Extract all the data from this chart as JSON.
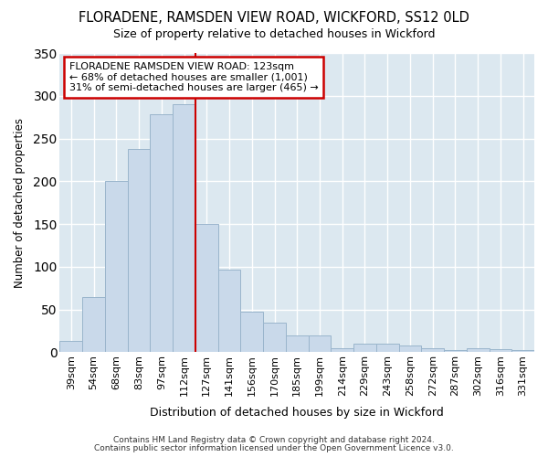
{
  "title": "FLORADENE, RAMSDEN VIEW ROAD, WICKFORD, SS12 0LD",
  "subtitle": "Size of property relative to detached houses in Wickford",
  "xlabel": "Distribution of detached houses by size in Wickford",
  "ylabel": "Number of detached properties",
  "categories": [
    "39sqm",
    "54sqm",
    "68sqm",
    "83sqm",
    "97sqm",
    "112sqm",
    "127sqm",
    "141sqm",
    "156sqm",
    "170sqm",
    "185sqm",
    "199sqm",
    "214sqm",
    "229sqm",
    "243sqm",
    "258sqm",
    "272sqm",
    "287sqm",
    "302sqm",
    "316sqm",
    "331sqm"
  ],
  "values": [
    13,
    65,
    200,
    238,
    278,
    290,
    150,
    97,
    48,
    35,
    20,
    20,
    5,
    10,
    10,
    8,
    5,
    3,
    5,
    4,
    3
  ],
  "bar_color": "#c9d9ea",
  "bar_edge_color": "#9ab5cc",
  "vline_x_index": 6,
  "vline_color": "#cc0000",
  "annotation_title": "FLORADENE RAMSDEN VIEW ROAD: 123sqm",
  "annotation_line1": "← 68% of detached houses are smaller (1,001)",
  "annotation_line2": "31% of semi-detached houses are larger (465) →",
  "annotation_box_color": "#ffffff",
  "annotation_box_edge": "#cc0000",
  "ylim": [
    0,
    350
  ],
  "yticks": [
    0,
    50,
    100,
    150,
    200,
    250,
    300,
    350
  ],
  "fig_bg_color": "#ffffff",
  "ax_bg_color": "#dce8f0",
  "grid_color": "#ffffff",
  "footnote1": "Contains HM Land Registry data © Crown copyright and database right 2024.",
  "footnote2": "Contains public sector information licensed under the Open Government Licence v3.0."
}
